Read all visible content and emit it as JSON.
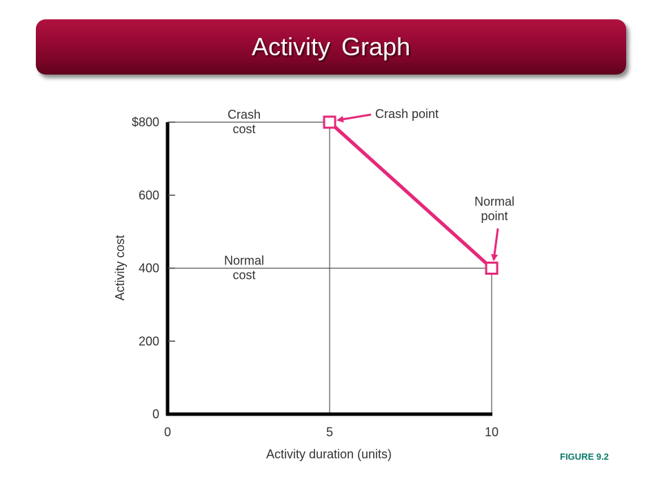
{
  "slide": {
    "title": "Activity Graph",
    "figure_label": "FIGURE 9.2"
  },
  "colors": {
    "banner": "#9a0a35",
    "series": "#e6287a",
    "axis": "#000000",
    "figure_label": "#0a7a6a"
  },
  "chart_data": {
    "type": "line",
    "xlabel": "Activity duration (units)",
    "ylabel": "Activity cost",
    "xlim": [
      0,
      10
    ],
    "ylim": [
      0,
      800
    ],
    "x_ticks": [
      {
        "value": 0,
        "label": "0"
      },
      {
        "value": 5,
        "label": "5"
      },
      {
        "value": 10,
        "label": "10"
      }
    ],
    "y_ticks": [
      {
        "value": 0,
        "label": "0"
      },
      {
        "value": 200,
        "label": "200"
      },
      {
        "value": 400,
        "label": "400"
      },
      {
        "value": 600,
        "label": "600"
      },
      {
        "value": 800,
        "label": "$800"
      }
    ],
    "series": [
      {
        "points": [
          {
            "x": 5,
            "y": 800
          },
          {
            "x": 10,
            "y": 400
          }
        ]
      }
    ],
    "reference_lines": [
      {
        "label": [
          "Crash",
          "cost"
        ],
        "y": 800,
        "x_to": 5
      },
      {
        "label": [
          "Normal",
          "cost"
        ],
        "y": 400,
        "x_to": 10
      }
    ],
    "annotations": [
      {
        "text": [
          "Crash point"
        ],
        "x": 5,
        "y": 800
      },
      {
        "text": [
          "Normal",
          "point"
        ],
        "x": 10,
        "y": 400
      }
    ],
    "grid": false,
    "legend": "none"
  }
}
